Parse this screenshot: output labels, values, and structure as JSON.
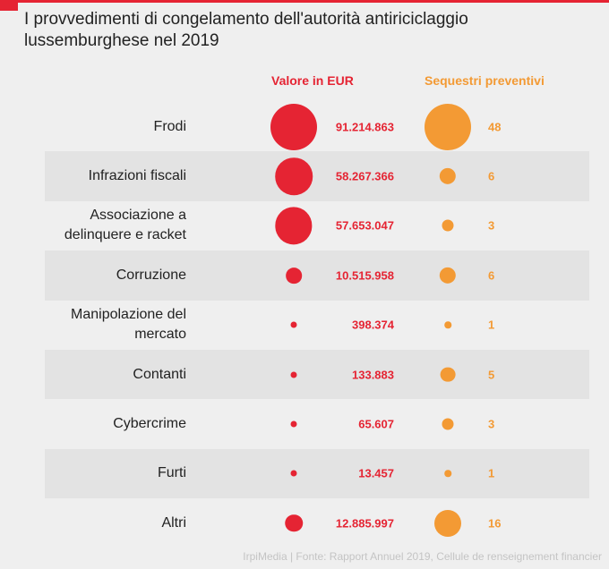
{
  "chart_data": {
    "type": "bubble-table",
    "title": "I provvedimenti di congelamento dell'autorità antiriciclaggio lussemburghese nel 2019",
    "columns": [
      "Valore in EUR",
      "Sequestri preventivi"
    ],
    "colors": {
      "valore": "#e52433",
      "sequestri": "#f39a34"
    },
    "categories": [
      "Frodi",
      "Infrazioni fiscali",
      "Associazione a delinquere e racket",
      "Corruzione",
      "Manipolazione del mercato",
      "Contanti",
      "Cybercrime",
      "Furti",
      "Altri"
    ],
    "valori": [
      91214863,
      58267366,
      57653047,
      10515958,
      398374,
      133883,
      65607,
      13457,
      12885997
    ],
    "valori_labels": [
      "91.214.863",
      "58.267.366",
      "57.653.047",
      "10.515.958",
      "398.374",
      "133.883",
      "65.607",
      "13.457",
      "12.885.997"
    ],
    "sequestri": [
      48,
      6,
      3,
      6,
      1,
      5,
      3,
      1,
      16
    ],
    "source": "IrpiMedia | Fonte: Rapport Annuel 2019, Cellule de renseignement financier"
  }
}
